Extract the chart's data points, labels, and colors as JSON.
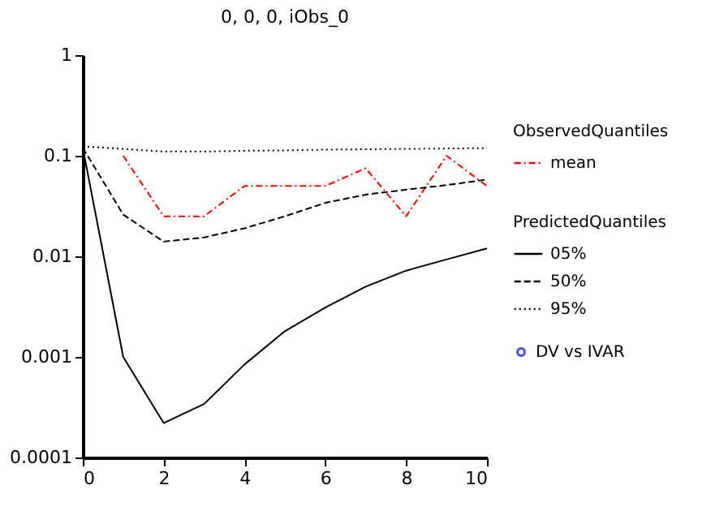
{
  "chart_data": {
    "type": "line",
    "title": "0, 0, 0, iObs_0",
    "legend_title": "ObservedQuantiles",
    "annotations": [
      "PredictedQuantiles"
    ],
    "x": [
      0,
      1,
      2,
      3,
      4,
      5,
      6,
      7,
      8,
      9,
      10
    ],
    "xlim": [
      0,
      10
    ],
    "xticks": [
      0,
      2,
      4,
      6,
      8,
      10
    ],
    "log": "y",
    "ylim": [
      0.0001,
      1
    ],
    "yticks": [
      1,
      0.1,
      0.01,
      0.001,
      {
        "value": 0.0001,
        "label": "0.0001"
      }
    ],
    "legend": "right",
    "grid": false,
    "series": [
      {
        "name": "mean",
        "color": "#ff0000",
        "line_style": "dashed",
        "values": [
          null,
          0.1,
          0.025,
          0.025,
          0.05,
          0.05,
          0.05,
          0.075,
          0.025,
          0.1,
          0.05
        ]
      },
      {
        "name": "05%",
        "color": "#000000",
        "line_style": "solid",
        "values": [
          0.12,
          0.001,
          0.00022,
          0.00034,
          0.00084,
          0.0018,
          0.0031,
          0.005,
          0.0072,
          0.0093,
          0.012
        ]
      },
      {
        "name": "50%",
        "color": "#000000",
        "line_style": "dashed",
        "values": [
          0.12,
          0.026,
          0.014,
          0.0154,
          0.019,
          0.025,
          0.034,
          0.041,
          0.046,
          0.051,
          0.058
        ]
      },
      {
        "name": "95%",
        "color": "#000000",
        "line_style": "dotted",
        "values": [
          0.124,
          0.117,
          0.11,
          0.11,
          0.112,
          0.113,
          0.115,
          0.116,
          0.117,
          0.118,
          0.119
        ]
      },
      {
        "name": "DV vs IVAR",
        "type": "scatter",
        "color": "#0000ff",
        "marker": "circle",
        "values": [
          null,
          null,
          null,
          null,
          null,
          null,
          null,
          null,
          null,
          null,
          null
        ]
      }
    ]
  }
}
